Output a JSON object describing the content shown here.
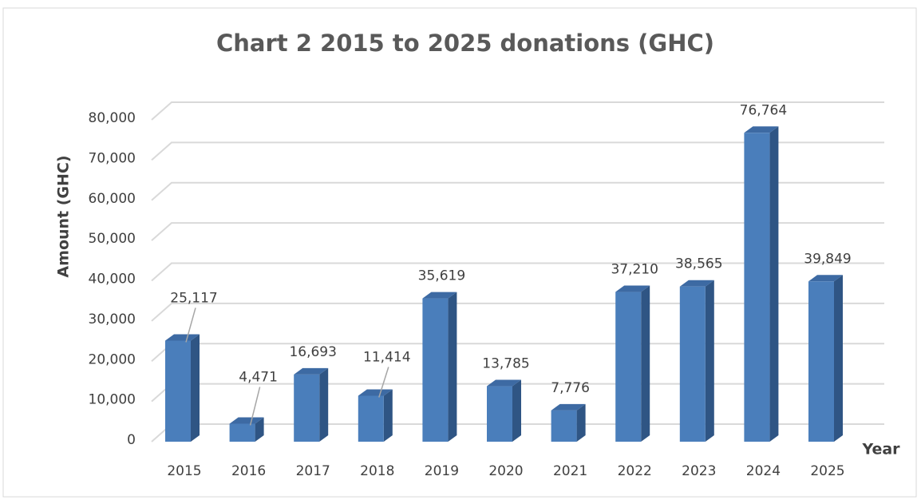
{
  "chart_data": {
    "type": "bar3d",
    "title": "Chart 2    2015 to 2025 donations (GHC)",
    "y_label": "Amount (GHC)",
    "x_label": "Year",
    "categories": [
      "2015",
      "2016",
      "2017",
      "2018",
      "2019",
      "2020",
      "2021",
      "2022",
      "2023",
      "2024",
      "2025"
    ],
    "values": [
      25117,
      4471,
      16693,
      11414,
      35619,
      13785,
      7776,
      37210,
      38565,
      76764,
      39849
    ],
    "value_labels": [
      "25,117",
      "4,471",
      "16,693",
      "11,414",
      "35,619",
      "13,785",
      "7,776",
      "37,210",
      "38,565",
      "76,764",
      "39,849"
    ],
    "color": "#4a7ebb",
    "ylim": [
      0,
      80000
    ],
    "yticks": [
      0,
      {
        "value": 10000,
        "label": "10,000"
      },
      {
        "value": 20000,
        "label": "20,000"
      },
      {
        "value": 30000,
        "label": "30,000"
      },
      {
        "value": 40000,
        "label": "40,000"
      },
      {
        "value": 50000,
        "label": "50,000"
      },
      {
        "value": 60000,
        "label": "60,000"
      },
      {
        "value": 70000,
        "label": "70,000"
      },
      {
        "value": 80000,
        "label": "80,000"
      }
    ],
    "grid": true
  }
}
